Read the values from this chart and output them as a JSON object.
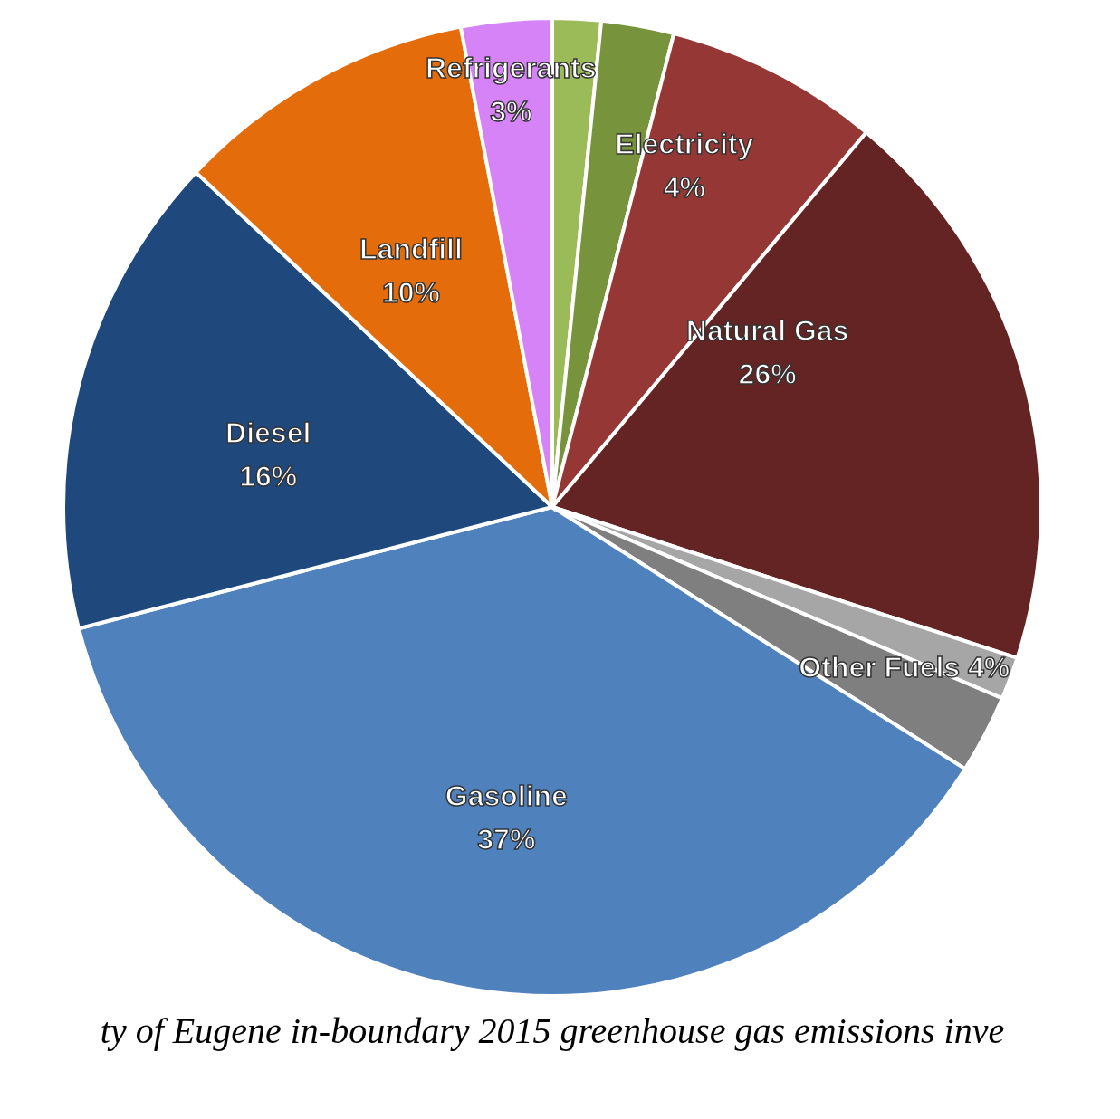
{
  "chart_data": {
    "type": "pie",
    "categories": [
      null,
      null,
      null,
      null,
      null,
      null,
      "Gasoline",
      "Diesel",
      "Landfill",
      "Refrigerants"
    ],
    "values": [
      1.6,
      2.4,
      7.1,
      18.9,
      1.4,
      2.6,
      37,
      16,
      10,
      3
    ],
    "value_labels": [
      null,
      null,
      null,
      null,
      null,
      null,
      "37%",
      "16%",
      "10%",
      "3%"
    ],
    "colors": [
      "#9bbb59",
      "#77933c",
      "#953735",
      "#632423",
      "#a6a6a6",
      "#7f7f7f",
      "#4f81bd",
      "#1f497d",
      "#e46c0a",
      "#d683f7"
    ],
    "annotations": [
      "Electricity 4%",
      "Natural Gas 26%",
      "Other Fuels 4%",
      "ty of Eugene in-boundary 2015 greenhouse gas emissions inve"
    ]
  }
}
